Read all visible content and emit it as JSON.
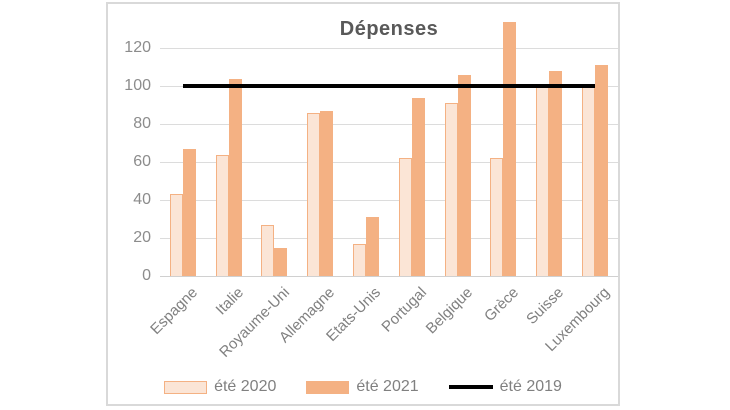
{
  "chart_data": {
    "type": "bar",
    "title": "Dépenses",
    "categories": [
      "Espagne",
      "Italie",
      "Royaume-Uni",
      "Allemagne",
      "Etats-Unis",
      "Portugal",
      "Belgique",
      "Grèce",
      "Suisse",
      "Luxembourg"
    ],
    "series": [
      {
        "name": "été 2020",
        "type": "bar",
        "color": "#fbe5d6",
        "border_color": "#f4b183",
        "values": [
          43,
          64,
          27,
          86,
          17,
          62,
          91,
          62,
          100,
          100
        ]
      },
      {
        "name": "été 2021",
        "type": "bar",
        "color": "#f4b183",
        "values": [
          67,
          104,
          15,
          87,
          31,
          94,
          106,
          134,
          108,
          111
        ]
      },
      {
        "name": "été 2019",
        "type": "line",
        "color": "#000000",
        "value": 100
      }
    ],
    "yticks": [
      0,
      20,
      40,
      60,
      80,
      100,
      120
    ],
    "ylim": [
      0,
      137
    ],
    "xlabel": "",
    "ylabel": "",
    "grid": true,
    "legend_position": "bottom",
    "title_color": "#595959",
    "axis_text_color": "#808080",
    "gridline_color": "#dcdcdc"
  }
}
